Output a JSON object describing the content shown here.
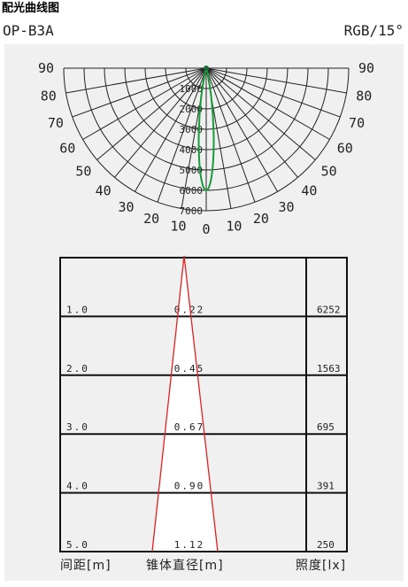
{
  "header": {
    "title": "配光曲线图",
    "model": "OP-B3A",
    "spec": "RGB/15°"
  },
  "polar": {
    "angle_labels_left": [
      "90",
      "80",
      "70",
      "60",
      "50",
      "40",
      "30",
      "20",
      "10"
    ],
    "angle_labels_right": [
      "90",
      "80",
      "70",
      "60",
      "50",
      "40",
      "30",
      "20",
      "10"
    ],
    "angle_label_zero": "0",
    "ring_labels": [
      "1000",
      "2000",
      "3000",
      "4000",
      "5000",
      "6000",
      "7000"
    ]
  },
  "table": {
    "rows": [
      [
        "1.0",
        "0.22",
        "6252"
      ],
      [
        "2.0",
        "0.45",
        "1563"
      ],
      [
        "3.0",
        "0.67",
        "695"
      ],
      [
        "4.0",
        "0.90",
        "391"
      ],
      [
        "5.0",
        "1.12",
        "250"
      ]
    ],
    "footer": [
      "间距[m]",
      "锥体直径[m]",
      "照度[lx]"
    ]
  }
}
